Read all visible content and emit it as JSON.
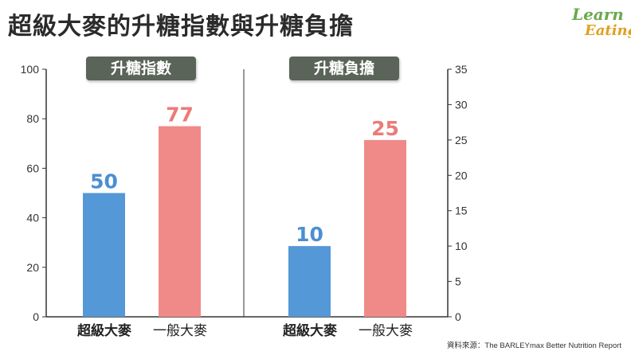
{
  "title": "超級大麥的升糖指數與升糖負擔",
  "logo": {
    "line1": "Learn",
    "line2": "Eating"
  },
  "source": "資料來源：The BARLEYmax Better Nutrition Report",
  "colors": {
    "blue": "#5598d8",
    "red": "#f08a88",
    "blue_text": "#4b8fd2",
    "red_text": "#ec7b78",
    "axis": "#333333"
  },
  "chart_data": [
    {
      "type": "bar",
      "title": "升糖指數",
      "categories": [
        "超級大麥",
        "一般大麥"
      ],
      "values": [
        50,
        77
      ],
      "ylim": [
        0,
        100
      ],
      "yticks": [
        0,
        20,
        40,
        60,
        80,
        100
      ],
      "axis_side": "left",
      "grid": false
    },
    {
      "type": "bar",
      "title": "升糖負擔",
      "categories": [
        "超級大麥",
        "一般大麥"
      ],
      "values": [
        10,
        25
      ],
      "ylim": [
        0,
        35
      ],
      "yticks": [
        0,
        5,
        10,
        15,
        20,
        25,
        30,
        35
      ],
      "axis_side": "right",
      "grid": false
    }
  ]
}
